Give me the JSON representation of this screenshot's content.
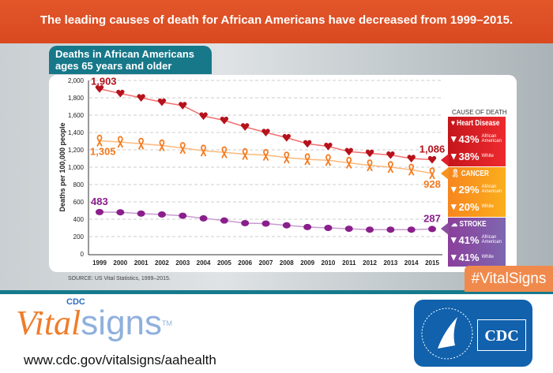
{
  "header": {
    "title": "The leading causes of death for African Americans have decreased from 1999–2015."
  },
  "tab": {
    "title_line1": "Deaths in African Americans",
    "title_line2": "ages 65 years and older"
  },
  "source": "SOURCE: US Vital Statistics, 1999–2015.",
  "hashtag": "#VitalSigns",
  "footer": {
    "logo_text": "CDC Vitalsigns™",
    "logo_cdc": "CDC",
    "logo_vital": "Vital",
    "logo_signs": "signs",
    "logo_tm": "TM",
    "url": "www.cdc.gov/vitalsigns/aahealth",
    "cdc_logo": "CDC"
  },
  "legend": {
    "title": "CAUSE OF DEATH",
    "items": [
      {
        "name": "Heart Disease",
        "icon": "heart-icon",
        "color": "#e01f2a",
        "aa": "43%",
        "white": "38%"
      },
      {
        "name": "CANCER",
        "icon": "ribbon-icon",
        "color": "#f7941d",
        "aa": "29%",
        "white": "20%"
      },
      {
        "name": "STROKE",
        "icon": "brain-icon",
        "color": "#8a4fa0",
        "aa": "41%",
        "white": "41%"
      }
    ],
    "aa_label": "African American",
    "white_label": "White"
  },
  "chart_data": {
    "type": "line",
    "ylabel": "Deaths per 100,000 people",
    "ylim": [
      0,
      2000
    ],
    "grid": true,
    "yticks": [
      "0",
      "200",
      "400",
      "600",
      "800",
      "1,000",
      "1,200",
      "1,400",
      "1,600",
      "1,800",
      "2,000"
    ],
    "x": [
      1999,
      2000,
      2001,
      2002,
      2003,
      2004,
      2005,
      2006,
      2007,
      2008,
      2009,
      2010,
      2011,
      2012,
      2013,
      2014,
      2015
    ],
    "series": [
      {
        "name": "Heart Disease",
        "color": "#b5121b",
        "line": "#f36f6f",
        "marker": "heart",
        "start_label": "1,903",
        "end_label": "1,086",
        "values": [
          1903,
          1850,
          1800,
          1750,
          1710,
          1590,
          1540,
          1465,
          1400,
          1340,
          1270,
          1240,
          1180,
          1160,
          1140,
          1100,
          1086
        ]
      },
      {
        "name": "CANCER",
        "color": "#f47b20",
        "line": "#fbb87c",
        "marker": "ribbon",
        "start_label": "1,305",
        "end_label": "928",
        "values": [
          1305,
          1290,
          1270,
          1250,
          1220,
          1190,
          1170,
          1150,
          1140,
          1110,
          1090,
          1080,
          1050,
          1020,
          1000,
          970,
          928
        ]
      },
      {
        "name": "STROKE",
        "color": "#8a1f8c",
        "line": "#c79bd0",
        "marker": "brain",
        "start_label": "483",
        "end_label": "287",
        "values": [
          483,
          480,
          465,
          455,
          440,
          410,
          385,
          355,
          350,
          330,
          310,
          300,
          290,
          280,
          280,
          280,
          287
        ]
      }
    ]
  }
}
